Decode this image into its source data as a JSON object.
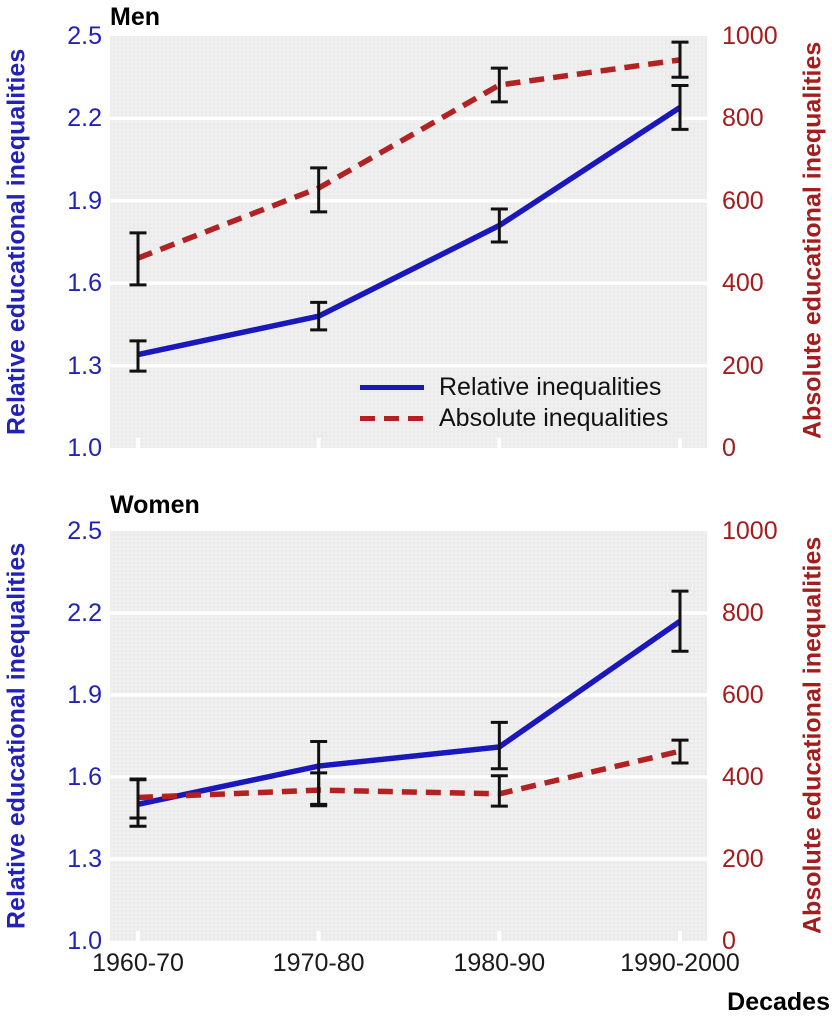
{
  "xlabel": "Decades",
  "colors": {
    "relative_blue": "#1a18bc",
    "blue_axis_text": "#2222b8",
    "absolute_red": "#b22222",
    "red_axis_text": "#a51c1c",
    "error_bar": "#111111",
    "plot_background": "#ececec",
    "gridline": "#ffffff"
  },
  "legend": {
    "items": [
      "Relative inequalities",
      "Absolute inequalities"
    ],
    "position": "inside bottom-right of Men panel"
  },
  "chart_data": [
    {
      "type": "line",
      "title": "Men",
      "categories": [
        "1960-70",
        "1970-80",
        "1980-90",
        "1990-2000"
      ],
      "left_axis": {
        "label": "Relative educational inequalities",
        "range": [
          1.0,
          2.5
        ],
        "ticks": [
          2.5,
          2.2,
          1.9,
          1.6,
          1.3,
          1.0
        ],
        "color": "#2222b8"
      },
      "right_axis": {
        "label": "Absolute educational inequalities",
        "range": [
          0,
          1000
        ],
        "ticks": [
          1000,
          800,
          600,
          400,
          200,
          0
        ],
        "color": "#a51c1c"
      },
      "grid": "horizontal white lines at tick values",
      "series": [
        {
          "name": "Relative inequalities",
          "axis": "left",
          "line": "solid",
          "color": "#1a18bc",
          "values": [
            1.34,
            1.48,
            1.81,
            2.24
          ],
          "err_low": [
            1.28,
            1.43,
            1.75,
            2.16
          ],
          "err_high": [
            1.39,
            1.53,
            1.87,
            2.32
          ]
        },
        {
          "name": "Absolute inequalities",
          "axis": "right",
          "line": "dashed",
          "color": "#b22222",
          "values": [
            461,
            631,
            881,
            942
          ],
          "err_low": [
            396,
            573,
            840,
            900
          ],
          "err_high": [
            522,
            680,
            922,
            985
          ]
        }
      ],
      "legend_visible": true
    },
    {
      "type": "line",
      "title": "Women",
      "categories": [
        "1960-70",
        "1970-80",
        "1980-90",
        "1990-2000"
      ],
      "left_axis": {
        "label": "Relative educational inequalities",
        "range": [
          1.0,
          2.5
        ],
        "ticks": [
          2.5,
          2.2,
          1.9,
          1.6,
          1.3,
          1.0
        ],
        "color": "#2222b8"
      },
      "right_axis": {
        "label": "Absolute educational inequalities",
        "range": [
          0,
          1000
        ],
        "ticks": [
          1000,
          800,
          600,
          400,
          200,
          0
        ],
        "color": "#a51c1c"
      },
      "grid": "horizontal white lines at tick values",
      "series": [
        {
          "name": "Relative inequalities",
          "axis": "left",
          "line": "solid",
          "color": "#1a18bc",
          "values": [
            1.5,
            1.64,
            1.71,
            2.17
          ],
          "err_low": [
            1.42,
            1.5,
            1.63,
            2.06
          ],
          "err_high": [
            1.59,
            1.73,
            1.8,
            2.28
          ]
        },
        {
          "name": "Absolute inequalities",
          "axis": "right",
          "line": "dashed",
          "color": "#b22222",
          "values": [
            350,
            368,
            359,
            463
          ],
          "err_low": [
            300,
            330,
            329,
            434
          ],
          "err_high": [
            395,
            410,
            403,
            490
          ]
        }
      ],
      "legend_visible": false
    }
  ]
}
